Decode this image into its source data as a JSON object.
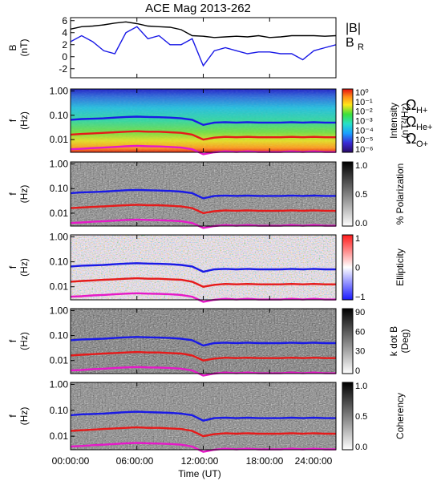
{
  "title": "ACE Mag 2013-262",
  "x_axis": {
    "ticks": [
      "00:00:00",
      "06:00:00",
      "12:00:00",
      "18:00:00",
      "24:00:00"
    ],
    "tick_hours": [
      0,
      6,
      12,
      18,
      24
    ],
    "label": "Time (UT)"
  },
  "legend_top": {
    "b_total": "|B|",
    "b_r": "B",
    "b_r_sub": "R"
  },
  "legend_ion": [
    {
      "base": "Ω",
      "sub": "H+",
      "color": "#1a1ae6"
    },
    {
      "base": "Ω",
      "sub": "He+",
      "color": "#e61a1a"
    },
    {
      "base": "Ω",
      "sub": "O+",
      "color": "#e619c8"
    }
  ],
  "colors": {
    "b_total": "#000000",
    "b_r": "#1a1ae6",
    "h_plus": "#1a1ae6",
    "he_plus": "#e61a1a",
    "o_plus": "#e619c8"
  },
  "panels": [
    {
      "id": "field",
      "type": "line",
      "ylabel": "B",
      "yunit": "(nT)",
      "yticks": [
        "6",
        "4",
        "2",
        "0",
        "-2"
      ],
      "ytick_values": [
        6,
        4,
        2,
        0,
        -2
      ],
      "ylim": [
        -3.5,
        6.5
      ]
    },
    {
      "id": "intensity",
      "type": "heatmap",
      "ylabel": "f",
      "yunit": "(Hz)",
      "yticks": [
        "1.00",
        "0.10",
        "0.01"
      ],
      "ytick_values": [
        1.0,
        0.1,
        0.01
      ],
      "cbar_label_1": "Intensity",
      "cbar_label_2": "(nT²/Hz)",
      "cbar_ticks": [
        "10⁰",
        "10⁻¹",
        "10⁻²",
        "10⁻³",
        "10⁻⁴",
        "10⁻⁵",
        "10⁻⁶"
      ],
      "cbar_type": "rainbow"
    },
    {
      "id": "polarization",
      "type": "heatmap",
      "ylabel": "f",
      "yunit": "(Hz)",
      "yticks": [
        "1.00",
        "0.10",
        "0.01"
      ],
      "ytick_values": [
        1.0,
        0.1,
        0.01
      ],
      "cbar_label_1": "% Polarization",
      "cbar_label_2": "",
      "cbar_ticks": [
        "1.0",
        "0.5",
        "0.0"
      ],
      "cbar_type": "gray"
    },
    {
      "id": "ellipticity",
      "type": "heatmap",
      "ylabel": "f",
      "yunit": "(Hz)",
      "yticks": [
        "1.00",
        "0.10",
        "0.01"
      ],
      "ytick_values": [
        1.0,
        0.1,
        0.01
      ],
      "cbar_label_1": "Ellipticity",
      "cbar_label_2": "",
      "cbar_ticks": [
        "1",
        "0",
        "−1"
      ],
      "cbar_type": "bwr"
    },
    {
      "id": "kdotb",
      "type": "heatmap",
      "ylabel": "f",
      "yunit": "(Hz)",
      "yticks": [
        "1.00",
        "0.10",
        "0.01"
      ],
      "ytick_values": [
        1.0,
        0.1,
        0.01
      ],
      "cbar_label_1": "k dot B",
      "cbar_label_2": "(Deg)",
      "cbar_ticks": [
        "90",
        "60",
        "30",
        "0"
      ],
      "cbar_type": "gray"
    },
    {
      "id": "coherency",
      "type": "heatmap",
      "ylabel": "f",
      "yunit": "(Hz)",
      "yticks": [
        "1.00",
        "0.10",
        "0.01"
      ],
      "ytick_values": [
        1.0,
        0.1,
        0.01
      ],
      "cbar_label_1": "Coherency",
      "cbar_label_2": "",
      "cbar_ticks": [
        "1.0",
        "0.5",
        "0.0"
      ],
      "cbar_type": "gray"
    }
  ],
  "chart_data": {
    "type": "line",
    "title": "ACE Mag 2013-262",
    "xlabel": "Time (UT)",
    "xlim": [
      0,
      24
    ],
    "field_panel": {
      "ylabel": "B (nT)",
      "ylim": [
        -3.5,
        6.5
      ],
      "series": [
        {
          "name": "|B|",
          "x": [
            0,
            1,
            2,
            3,
            4,
            5,
            6,
            7,
            8,
            9,
            10,
            11,
            12,
            13,
            14,
            15,
            16,
            17,
            18,
            19,
            20,
            21,
            22,
            23,
            24
          ],
          "values": [
            4.6,
            5.0,
            5.1,
            5.3,
            5.6,
            5.8,
            5.5,
            5.1,
            5.0,
            4.9,
            4.5,
            3.5,
            3.4,
            3.2,
            3.3,
            3.4,
            3.3,
            3.5,
            3.2,
            3.3,
            3.5,
            3.5,
            3.5,
            3.4,
            3.5
          ]
        },
        {
          "name": "BR",
          "x": [
            0,
            1,
            2,
            3,
            4,
            5,
            6,
            7,
            8,
            9,
            10,
            11,
            12,
            13,
            14,
            15,
            16,
            17,
            18,
            19,
            20,
            21,
            22,
            23,
            24
          ],
          "values": [
            2.5,
            3.5,
            2.5,
            1.0,
            0.5,
            4.0,
            5.0,
            3.0,
            3.5,
            2.0,
            2.0,
            3.0,
            -1.5,
            1.0,
            1.5,
            1.0,
            0.5,
            0.8,
            0.8,
            0.5,
            0.5,
            -0.5,
            1.0,
            1.5,
            2.0
          ]
        }
      ]
    },
    "frequency_panels": {
      "ylabel": "f (Hz)",
      "ylim": [
        0.003,
        1.2
      ],
      "yscale": "log",
      "series": [
        {
          "name": "ΩH+",
          "x": [
            0,
            1,
            2,
            3,
            4,
            5,
            6,
            7,
            8,
            9,
            10,
            11,
            12,
            13,
            14,
            15,
            16,
            17,
            18,
            19,
            20,
            21,
            22,
            23,
            24
          ],
          "values": [
            0.065,
            0.07,
            0.072,
            0.075,
            0.08,
            0.085,
            0.088,
            0.085,
            0.083,
            0.08,
            0.075,
            0.065,
            0.04,
            0.05,
            0.052,
            0.05,
            0.052,
            0.05,
            0.05,
            0.05,
            0.052,
            0.05,
            0.052,
            0.05,
            0.05
          ]
        },
        {
          "name": "ΩHe+",
          "x": [
            0,
            1,
            2,
            3,
            4,
            5,
            6,
            7,
            8,
            9,
            10,
            11,
            12,
            13,
            14,
            15,
            16,
            17,
            18,
            19,
            20,
            21,
            22,
            23,
            24
          ],
          "values": [
            0.016,
            0.017,
            0.018,
            0.019,
            0.02,
            0.021,
            0.022,
            0.021,
            0.021,
            0.02,
            0.019,
            0.016,
            0.01,
            0.012,
            0.013,
            0.0125,
            0.013,
            0.0125,
            0.0125,
            0.0125,
            0.013,
            0.0125,
            0.013,
            0.0125,
            0.0125
          ]
        },
        {
          "name": "ΩO+",
          "x": [
            0,
            1,
            2,
            3,
            4,
            5,
            6,
            7,
            8,
            9,
            10,
            11,
            12,
            13,
            14,
            15,
            16,
            17,
            18,
            19,
            20,
            21,
            22,
            23,
            24
          ],
          "values": [
            0.004,
            0.0042,
            0.0045,
            0.0047,
            0.005,
            0.0053,
            0.0055,
            0.0053,
            0.0052,
            0.005,
            0.0047,
            0.004,
            0.0025,
            0.003,
            0.0033,
            0.0031,
            0.0033,
            0.0031,
            0.0031,
            0.0031,
            0.0033,
            0.0031,
            0.0033,
            0.0031,
            0.0031
          ]
        }
      ]
    }
  }
}
